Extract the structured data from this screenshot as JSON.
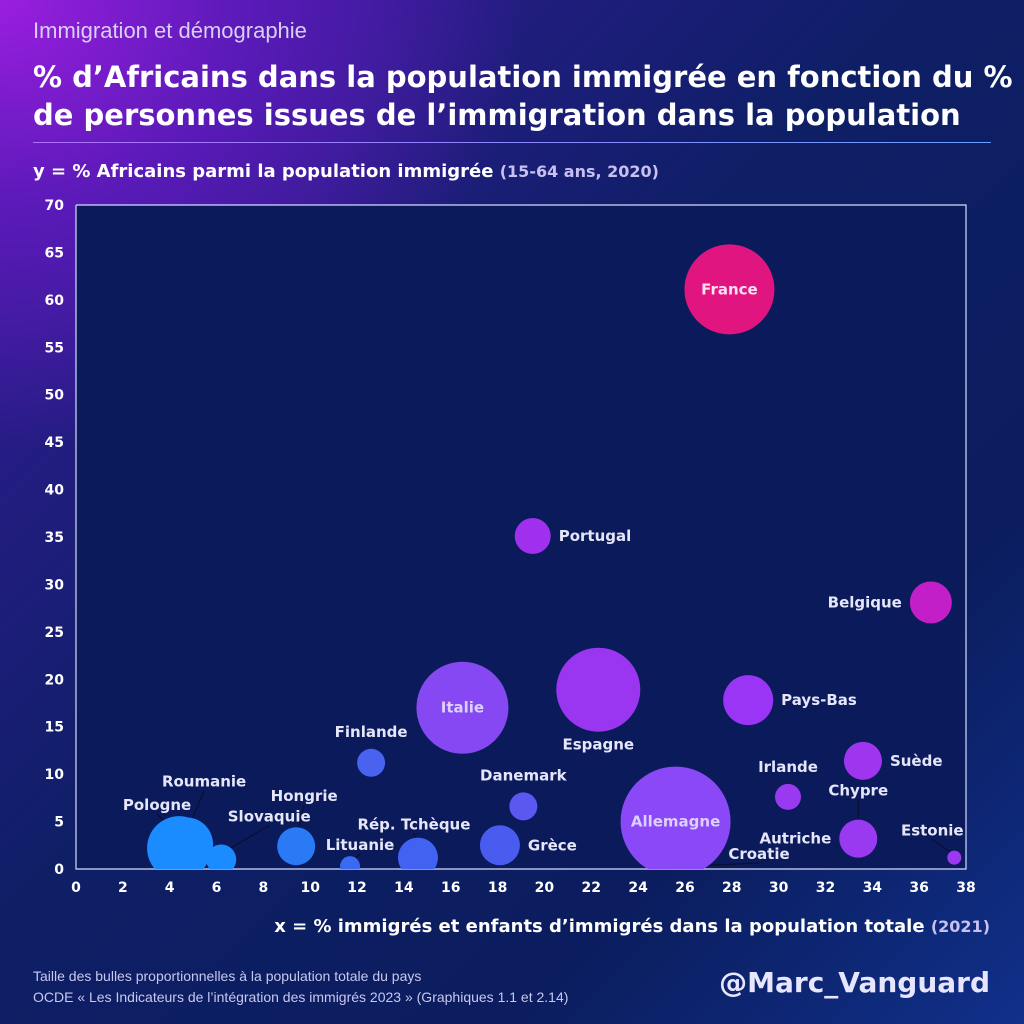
{
  "header": {
    "kicker": "Immigration et démographie",
    "title": "% d’Africains dans la population immigrée en fonction du % de personnes issues de l’immigration dans la population"
  },
  "footer": {
    "note": "Taille des bulles proportionnelles à la population totale du pays",
    "source": "OCDE « Les Indicateurs de l’intégration des immigrés 2023 » (Graphiques 1.1 et 2.14)",
    "handle": "@Marc_Vanguard"
  },
  "chart_data": {
    "type": "scatter",
    "title": "% d’Africains dans la population immigrée en fonction du % de personnes issues de l’immigration dans la population",
    "ylabel": "y = % Africains parmi la population immigrée",
    "ylabel_sub": "(15-64 ans, 2020)",
    "xlabel": "x = % immigrés et enfants d’immigrés dans la population totale",
    "xlabel_sub": "(2021)",
    "xlim": [
      0,
      38
    ],
    "ylim": [
      0,
      70
    ],
    "xticks": [
      0,
      2,
      4,
      6,
      8,
      10,
      12,
      14,
      16,
      18,
      20,
      22,
      24,
      26,
      28,
      30,
      32,
      34,
      36,
      38
    ],
    "yticks": [
      0,
      5,
      10,
      15,
      20,
      25,
      30,
      35,
      40,
      45,
      50,
      55,
      60,
      65,
      70
    ],
    "points": [
      {
        "name": "France",
        "x": 27.9,
        "y": 61.1,
        "size": 45,
        "color": "#e0157f",
        "label_pos": "inside"
      },
      {
        "name": "Portugal",
        "x": 19.5,
        "y": 35.1,
        "size": 18,
        "color": "#a030ee",
        "label_pos": "right"
      },
      {
        "name": "Belgique",
        "x": 36.5,
        "y": 28.1,
        "size": 21,
        "color": "#c21fc8",
        "label_pos": "left"
      },
      {
        "name": "Espagne",
        "x": 22.3,
        "y": 18.9,
        "size": 42,
        "color": "#9a35f0",
        "label_pos": "below"
      },
      {
        "name": "Italie",
        "x": 16.5,
        "y": 17.0,
        "size": 46,
        "color": "#8548f2",
        "label_pos": "inside"
      },
      {
        "name": "Pays-Bas",
        "x": 28.7,
        "y": 17.8,
        "size": 25,
        "color": "#9a35f5",
        "label_pos": "right"
      },
      {
        "name": "Finlande",
        "x": 12.6,
        "y": 11.2,
        "size": 14,
        "color": "#4a62f0",
        "label_pos": "above"
      },
      {
        "name": "Danemark",
        "x": 19.1,
        "y": 6.6,
        "size": 14,
        "color": "#5a58f0",
        "label_pos": "above"
      },
      {
        "name": "Suède",
        "x": 33.6,
        "y": 11.4,
        "size": 19,
        "color": "#a035f0",
        "label_pos": "right"
      },
      {
        "name": "Irlande",
        "x": 30.4,
        "y": 7.6,
        "size": 13,
        "color": "#9a3af0",
        "label_pos": "above"
      },
      {
        "name": "Chypre",
        "x": 33.4,
        "y": 4.6,
        "size": 4,
        "color": "#9a3af0",
        "label_pos": "above"
      },
      {
        "name": "Autriche",
        "x": 33.4,
        "y": 3.2,
        "size": 19,
        "color": "#9a3af0",
        "label_pos": "left"
      },
      {
        "name": "Allemagne",
        "x": 25.6,
        "y": 5.0,
        "size": 55,
        "color": "#8a48f6",
        "label_pos": "inside"
      },
      {
        "name": "Croatie",
        "x": 26.6,
        "y": 0.2,
        "size": 4,
        "color": "#8a48f6",
        "label_pos": "right"
      },
      {
        "name": "Grèce",
        "x": 18.1,
        "y": 2.5,
        "size": 20,
        "color": "#4a5cf0",
        "label_pos": "right"
      },
      {
        "name": "Rép. Tchèque",
        "x": 14.6,
        "y": 1.2,
        "size": 20,
        "color": "#4262f2",
        "label_pos": "above"
      },
      {
        "name": "Lituanie",
        "x": 11.7,
        "y": 0.3,
        "size": 10,
        "color": "#3a6af2",
        "label_pos": "above"
      },
      {
        "name": "Hongrie",
        "x": 9.4,
        "y": 2.4,
        "size": 19,
        "color": "#2a7af5",
        "label_pos": "above"
      },
      {
        "name": "Pologne",
        "x": 4.4,
        "y": 2.2,
        "size": 32,
        "color": "#1a8cff",
        "label_pos": "above"
      },
      {
        "name": "Roumanie",
        "x": 4.7,
        "y": 2.6,
        "size": 27,
        "color": "#1a8cff",
        "label_pos": "above"
      },
      {
        "name": "Slovaquie",
        "x": 6.2,
        "y": 1.0,
        "size": 15,
        "color": "#1a8cff",
        "label_pos": "above"
      },
      {
        "name": "Estonie",
        "x": 37.5,
        "y": 1.2,
        "size": 7,
        "color": "#9a3af0",
        "label_pos": "above"
      }
    ]
  }
}
